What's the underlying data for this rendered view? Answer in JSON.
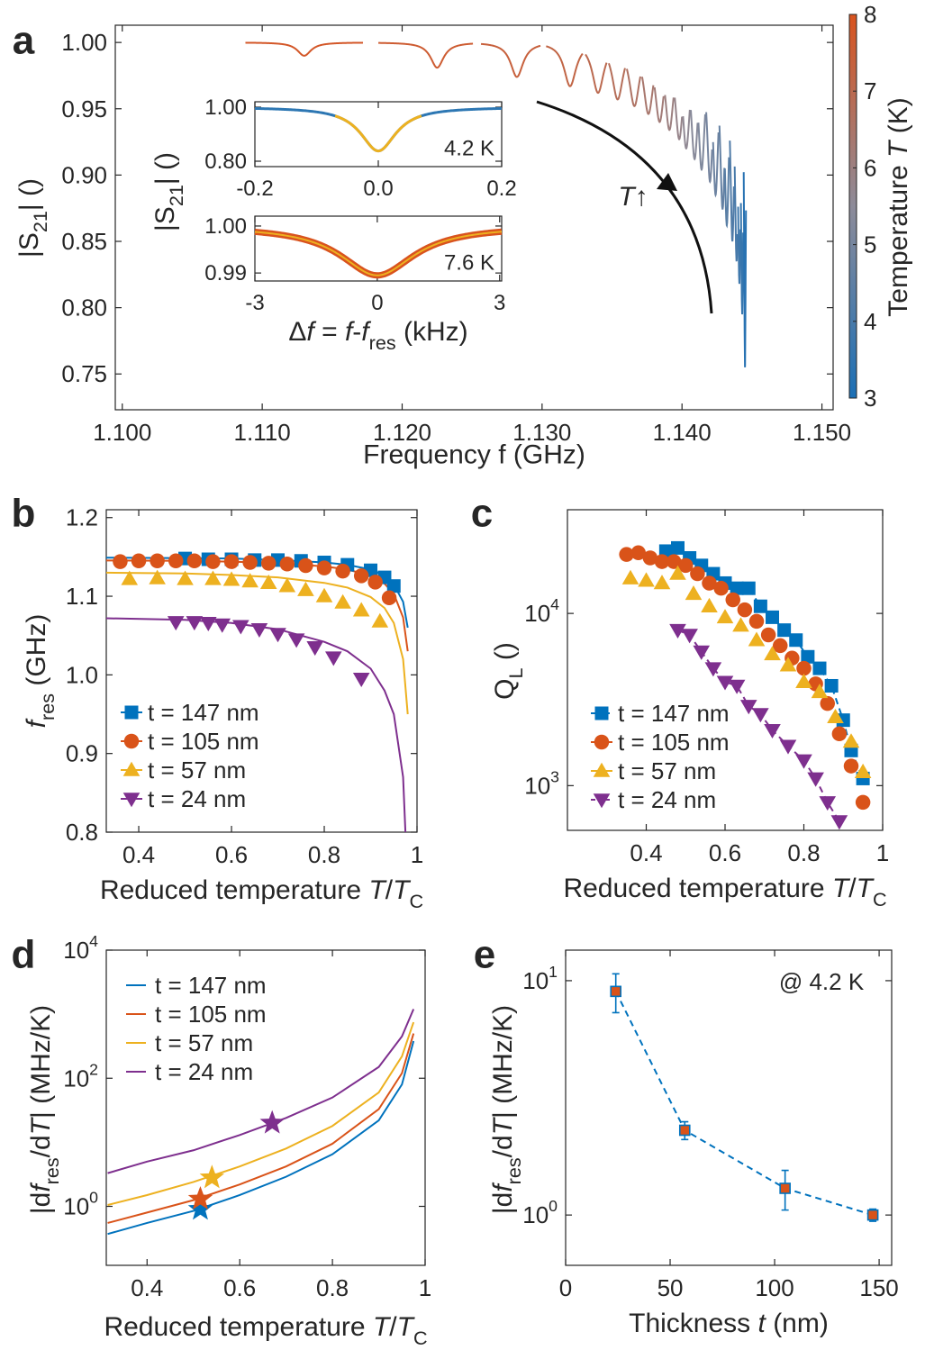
{
  "chart_data": [
    {
      "type": "resonance",
      "label": "a",
      "xlabel": "Frequency f (GHz)",
      "ylabel": [
        {
          "text": "|S"
        },
        {
          "text": "21",
          "style": "sub"
        },
        {
          "text": "| ()"
        }
      ],
      "xlim": [
        1.0995,
        1.1508
      ],
      "ylim": [
        0.723,
        1.013
      ],
      "xticks": [
        {
          "value": 1.1,
          "label": "1.100"
        },
        {
          "value": 1.11,
          "label": "1.110"
        },
        {
          "value": 1.12,
          "label": "1.120"
        },
        {
          "value": 1.13,
          "label": "1.130"
        },
        {
          "value": 1.14,
          "label": "1.140"
        },
        {
          "value": 1.15,
          "label": "1.150"
        }
      ],
      "yticks": [
        {
          "value": 1,
          "label": "1.00"
        },
        0.95,
        {
          "value": 0.9,
          "label": "0.90"
        },
        0.85,
        {
          "value": 0.8,
          "label": "0.80"
        },
        0.75
      ],
      "f_res": [
        1.113,
        1.1225,
        1.1282,
        1.132,
        1.134,
        1.1354,
        1.1366,
        1.1376,
        1.1384,
        1.1391,
        1.1398,
        1.1403,
        1.1409,
        1.1414,
        1.142,
        1.1424,
        1.1429,
        1.1432,
        1.1436,
        1.1439,
        1.1441,
        1.1443,
        1.1445
      ],
      "s21_min": [
        0.99,
        0.981,
        0.974,
        0.967,
        0.962,
        0.957,
        0.952,
        0.946,
        0.94,
        0.934,
        0.927,
        0.92,
        0.912,
        0.904,
        0.895,
        0.885,
        0.874,
        0.862,
        0.85,
        0.835,
        0.818,
        0.795,
        0.755
      ],
      "temperature": [
        7.8,
        7.6,
        7.4,
        7.2,
        7.0,
        6.8,
        6.6,
        6.4,
        6.2,
        6.0,
        5.8,
        5.6,
        5.4,
        5.2,
        5.0,
        4.8,
        4.6,
        4.4,
        4.2,
        4.0,
        3.8,
        3.6,
        3.3
      ],
      "colorbar": {
        "label": [
          {
            "text": "Temperature "
          },
          {
            "text": "T",
            "style": "italic"
          },
          {
            "text": " (K)"
          }
        ],
        "lim": [
          3,
          8
        ],
        "ticks": [
          3,
          4,
          5,
          6,
          7,
          8
        ],
        "colors": [
          "#1a6fb5",
          "#8d8b99",
          "#d9531e"
        ]
      },
      "annotation": [
        {
          "text": "T",
          "style": "italic"
        },
        {
          "text": "↑"
        }
      ]
    },
    {
      "type": "resonance_inset",
      "ylabel": [
        {
          "text": "|S"
        },
        {
          "text": "21",
          "style": "sub"
        },
        {
          "text": "| ()"
        }
      ],
      "xlim": [
        -0.2,
        0.2
      ],
      "ylim": [
        0.78,
        1.02
      ],
      "xticks": [
        -0.2,
        {
          "value": 0,
          "label": "0.0"
        },
        0.2
      ],
      "yticks": [
        {
          "value": 1,
          "label": "1.00"
        },
        {
          "value": 0.8,
          "label": "0.80"
        }
      ],
      "annotation": "4.2 K",
      "center": 0,
      "s21_min": 0.838,
      "fwhm": 0.07,
      "data_color": "#2d77b3",
      "fit_color": "#edb120"
    },
    {
      "type": "resonance_inset",
      "xlabel": [
        {
          "text": "Δ"
        },
        {
          "text": "f",
          "style": "italic"
        },
        {
          "text": " = "
        },
        {
          "text": "f",
          "style": "italic"
        },
        {
          "text": "-"
        },
        {
          "text": "f",
          "style": "italic"
        },
        {
          "text": "res",
          "style": "sub"
        },
        {
          "text": " (kHz)"
        }
      ],
      "xlim": [
        -3,
        3.05
      ],
      "ylim": [
        0.9883,
        1.0021
      ],
      "xticks": [
        -3,
        0,
        3
      ],
      "yticks": [
        {
          "value": 1,
          "label": "1.00"
        },
        0.99
      ],
      "annotation": "7.6 K",
      "center": 0,
      "s21_min": 0.9895,
      "fwhm": 2.2,
      "data_color": "#d9531e",
      "fit_color": "#edb120"
    },
    {
      "type": "scatter",
      "label": "b",
      "xlabel": [
        {
          "text": "Reduced temperature "
        },
        {
          "text": "T",
          "style": "italic"
        },
        {
          "text": "/"
        },
        {
          "text": "T",
          "style": "italic"
        },
        {
          "text": "C",
          "style": "sub"
        }
      ],
      "ylabel": [
        {
          "text": "f",
          "style": "italic"
        },
        {
          "text": "res",
          "style": "sub"
        },
        {
          "text": " (GHz)"
        }
      ],
      "xlim": [
        0.33,
        1
      ],
      "ylim": [
        0.8,
        1.21
      ],
      "xticks": [
        0.4,
        0.6,
        0.8,
        1
      ],
      "yticks": [
        0.8,
        0.9,
        {
          "value": 1,
          "label": "1.0"
        },
        1.1,
        1.2
      ],
      "series": [
        {
          "name": "t = 147 nm",
          "color": "#0072bd",
          "marker": "square",
          "x": [
            0.5,
            0.55,
            0.6,
            0.65,
            0.7,
            0.75,
            0.8,
            0.85,
            0.9,
            0.93,
            0.95
          ],
          "values": [
            1.148,
            1.147,
            1.147,
            1.146,
            1.146,
            1.145,
            1.143,
            1.14,
            1.133,
            1.124,
            1.113
          ],
          "fit_x": [
            0.33,
            0.5,
            0.6,
            0.7,
            0.8,
            0.85,
            0.9,
            0.93,
            0.95,
            0.97,
            0.98
          ],
          "fit_values": [
            1.149,
            1.1485,
            1.148,
            1.146,
            1.143,
            1.14,
            1.134,
            1.126,
            1.115,
            1.093,
            1.06
          ]
        },
        {
          "name": "t = 105 nm",
          "color": "#d95319",
          "marker": "circle",
          "x": [
            0.36,
            0.4,
            0.44,
            0.48,
            0.52,
            0.56,
            0.6,
            0.64,
            0.68,
            0.72,
            0.76,
            0.8,
            0.84,
            0.88,
            0.91,
            0.94
          ],
          "values": [
            1.144,
            1.145,
            1.145,
            1.145,
            1.145,
            1.144,
            1.144,
            1.143,
            1.142,
            1.141,
            1.139,
            1.136,
            1.132,
            1.126,
            1.118,
            1.098
          ],
          "fit_x": [
            0.33,
            0.5,
            0.6,
            0.7,
            0.8,
            0.85,
            0.9,
            0.93,
            0.95,
            0.97,
            0.98
          ],
          "fit_values": [
            1.1455,
            1.145,
            1.144,
            1.142,
            1.138,
            1.134,
            1.126,
            1.116,
            1.103,
            1.073,
            1.03
          ]
        },
        {
          "name": "t = 57 nm",
          "color": "#edb120",
          "marker": "triangle-up",
          "x": [
            0.38,
            0.44,
            0.5,
            0.56,
            0.6,
            0.64,
            0.68,
            0.72,
            0.76,
            0.8,
            0.84,
            0.88,
            0.92
          ],
          "values": [
            1.122,
            1.123,
            1.122,
            1.122,
            1.121,
            1.119,
            1.117,
            1.113,
            1.108,
            1.1,
            1.092,
            1.082,
            1.068
          ],
          "fit_x": [
            0.33,
            0.5,
            0.6,
            0.7,
            0.8,
            0.85,
            0.9,
            0.93,
            0.95,
            0.97,
            0.98
          ],
          "fit_values": [
            1.13,
            1.129,
            1.127,
            1.124,
            1.117,
            1.111,
            1.099,
            1.085,
            1.066,
            1.02,
            0.95
          ]
        },
        {
          "name": "t = 24 nm",
          "color": "#7e2f8e",
          "marker": "triangle-down",
          "x": [
            0.48,
            0.52,
            0.55,
            0.58,
            0.62,
            0.66,
            0.7,
            0.74,
            0.78,
            0.82,
            0.88
          ],
          "values": [
            1.067,
            1.067,
            1.066,
            1.064,
            1.062,
            1.058,
            1.052,
            1.045,
            1.035,
            1.022,
            0.995
          ],
          "fit_x": [
            0.33,
            0.5,
            0.6,
            0.7,
            0.8,
            0.85,
            0.9,
            0.93,
            0.95,
            0.97,
            0.975
          ],
          "fit_values": [
            1.072,
            1.07,
            1.066,
            1.058,
            1.042,
            1.03,
            1.008,
            0.98,
            0.95,
            0.87,
            0.8
          ]
        }
      ]
    },
    {
      "type": "scatter",
      "label": "c",
      "xlabel": [
        {
          "text": "Reduced temperature "
        },
        {
          "text": "T",
          "style": "italic"
        },
        {
          "text": "/"
        },
        {
          "text": "T",
          "style": "italic"
        },
        {
          "text": "C",
          "style": "sub"
        }
      ],
      "ylabel": [
        {
          "text": "Q"
        },
        {
          "text": "L",
          "style": "sub"
        },
        {
          "text": " ()"
        }
      ],
      "xlim": [
        0.2,
        1
      ],
      "ylim": [
        550,
        40000
      ],
      "ylog": true,
      "xticks": [
        0.4,
        0.6,
        0.8,
        1
      ],
      "yticks": [
        {
          "value": 1000,
          "label": "10",
          "exponent": "3"
        },
        {
          "value": 10000,
          "label": "10",
          "exponent": "4"
        }
      ],
      "series": [
        {
          "name": "t = 147 nm",
          "color": "#0072bd",
          "marker": "square",
          "line_style": "dashed",
          "x": [
            0.45,
            0.48,
            0.51,
            0.54,
            0.57,
            0.6,
            0.63,
            0.66,
            0.69,
            0.72,
            0.75,
            0.78,
            0.81,
            0.84,
            0.87,
            0.9,
            0.92,
            0.95
          ],
          "values": [
            23000,
            24000,
            21000,
            19000,
            17000,
            15000,
            14000,
            14000,
            11000,
            9500,
            8000,
            7000,
            5600,
            4800,
            3800,
            2400,
            1600,
            1100
          ]
        },
        {
          "name": "t = 105 nm",
          "color": "#d95319",
          "marker": "circle",
          "x": [
            0.35,
            0.38,
            0.41,
            0.44,
            0.47,
            0.5,
            0.53,
            0.56,
            0.59,
            0.62,
            0.65,
            0.68,
            0.71,
            0.74,
            0.77,
            0.8,
            0.83,
            0.86,
            0.89,
            0.92,
            0.95
          ],
          "values": [
            22000,
            22500,
            21000,
            20000,
            20000,
            19000,
            17000,
            15000,
            14000,
            12000,
            10500,
            9000,
            7500,
            6500,
            5500,
            4800,
            3900,
            3000,
            2000,
            1300,
            800
          ]
        },
        {
          "name": "t = 57 nm",
          "color": "#edb120",
          "marker": "triangle-up",
          "x": [
            0.36,
            0.4,
            0.44,
            0.48,
            0.52,
            0.56,
            0.6,
            0.64,
            0.68,
            0.72,
            0.76,
            0.8,
            0.84,
            0.88,
            0.92,
            0.95
          ],
          "values": [
            16000,
            15500,
            15000,
            17000,
            13000,
            11000,
            9500,
            8500,
            7000,
            5800,
            5000,
            4000,
            3500,
            2500,
            1800,
            1200
          ]
        },
        {
          "name": "t = 24 nm",
          "color": "#7e2f8e",
          "marker": "triangle-down",
          "line_style": "dashed",
          "x": [
            0.48,
            0.51,
            0.54,
            0.57,
            0.6,
            0.63,
            0.66,
            0.69,
            0.72,
            0.76,
            0.8,
            0.83,
            0.86,
            0.89
          ],
          "values": [
            8000,
            7500,
            6000,
            4800,
            4000,
            3800,
            2900,
            2600,
            2100,
            1700,
            1400,
            1100,
            800,
            620
          ]
        }
      ]
    },
    {
      "type": "line",
      "label": "d",
      "xlabel": [
        {
          "text": "Reduced temperature "
        },
        {
          "text": "T",
          "style": "italic"
        },
        {
          "text": "/"
        },
        {
          "text": "T",
          "style": "italic"
        },
        {
          "text": "C",
          "style": "sub"
        }
      ],
      "ylabel": [
        {
          "text": "|d"
        },
        {
          "text": "f",
          "style": "italic"
        },
        {
          "text": "res",
          "style": "sub"
        },
        {
          "text": "/d"
        },
        {
          "text": "T",
          "style": "italic"
        },
        {
          "text": "| (MHz/K)"
        }
      ],
      "xlim": [
        0.312,
        1
      ],
      "ylim": [
        0.12,
        10000
      ],
      "ylog": true,
      "xticks": [
        0.4,
        0.6,
        0.8,
        1
      ],
      "yticks": [
        {
          "value": 1,
          "label": "10",
          "exponent": "0"
        },
        {
          "value": 100,
          "label": "10",
          "exponent": "2"
        },
        {
          "value": 10000,
          "label": "10",
          "exponent": "4"
        }
      ],
      "x": [
        0.315,
        0.4,
        0.5,
        0.6,
        0.7,
        0.8,
        0.9,
        0.95,
        0.975
      ],
      "series": [
        {
          "name": "t = 147 nm",
          "color": "#0072bd",
          "values": [
            0.37,
            0.55,
            0.85,
            1.5,
            2.9,
            6.5,
            22,
            80,
            380
          ],
          "star_x": 0.515,
          "star_value": 0.9
        },
        {
          "name": "t = 105 nm",
          "color": "#d95319",
          "values": [
            0.55,
            0.8,
            1.25,
            2.2,
            4.2,
            9.5,
            33,
            120,
            500
          ],
          "star_x": 0.515,
          "star_value": 1.3
        },
        {
          "name": "t = 57 nm",
          "color": "#edb120",
          "values": [
            1.05,
            1.5,
            2.4,
            4.2,
            8,
            18,
            60,
            220,
            750
          ],
          "star_x": 0.54,
          "star_value": 2.8
        },
        {
          "name": "t = 24 nm",
          "color": "#7e2f8e",
          "values": [
            3.3,
            5,
            7.5,
            13,
            24,
            50,
            150,
            450,
            1200
          ],
          "star_x": 0.67,
          "star_value": 20
        }
      ]
    },
    {
      "type": "errorbar",
      "label": "e",
      "xlabel": [
        {
          "text": "Thickness "
        },
        {
          "text": "t",
          "style": "italic"
        },
        {
          "text": " (nm)"
        }
      ],
      "ylabel": [
        {
          "text": "|d"
        },
        {
          "text": "f",
          "style": "italic"
        },
        {
          "text": "res",
          "style": "sub"
        },
        {
          "text": "/d"
        },
        {
          "text": "T",
          "style": "italic"
        },
        {
          "text": "| (MHz/K)"
        }
      ],
      "xlim": [
        0,
        156
      ],
      "ylim": [
        0.61,
        13.5
      ],
      "ylog": true,
      "xticks": [
        0,
        50,
        100,
        150
      ],
      "yticks": [
        {
          "value": 1,
          "label": "10",
          "exponent": "0"
        },
        {
          "value": 10,
          "label": "10",
          "exponent": "1"
        }
      ],
      "x": [
        24,
        57,
        105,
        147
      ],
      "values": [
        9.0,
        2.3,
        1.3,
        1.0
      ],
      "errors": [
        1.7,
        0.2,
        0.25,
        0.06
      ],
      "color": "#0072bd",
      "marker_color": "#d95319",
      "line_style": "dashed",
      "annotation": "@ 4.2 K"
    }
  ]
}
